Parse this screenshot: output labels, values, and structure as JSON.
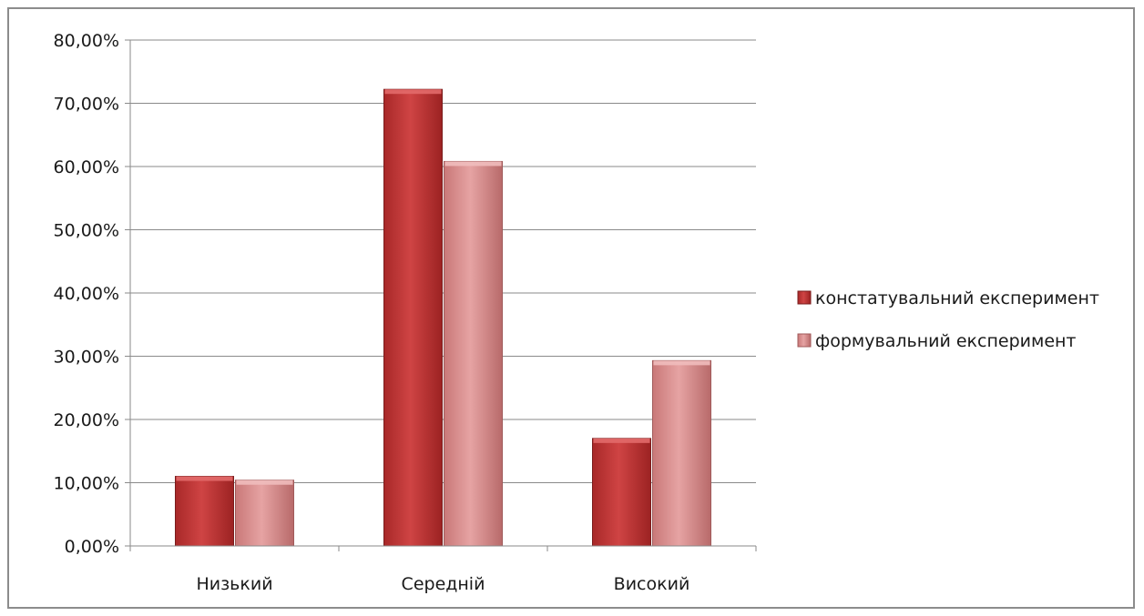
{
  "chart_data": {
    "type": "bar",
    "title": "",
    "xlabel": "",
    "ylabel": "",
    "categories": [
      "Низький",
      "Середній",
      "Високий"
    ],
    "series": [
      {
        "name": "констатувальний експеримент",
        "values": [
          11.0,
          72.2,
          17.0
        ]
      },
      {
        "name": "формувальний експеримент",
        "values": [
          10.4,
          60.8,
          29.3
        ]
      }
    ],
    "ylim": [
      0,
      80
    ],
    "yticks": [
      0,
      10,
      20,
      30,
      40,
      50,
      60,
      70,
      80
    ],
    "ytick_labels": [
      "0,00%",
      "10,00%",
      "20,00%",
      "30,00%",
      "40,00%",
      "50,00%",
      "60,00%",
      "70,00%",
      "80,00%"
    ],
    "grid": true,
    "legend_position": "right",
    "colors": [
      "#c03a3a",
      "#d98c8c"
    ]
  }
}
